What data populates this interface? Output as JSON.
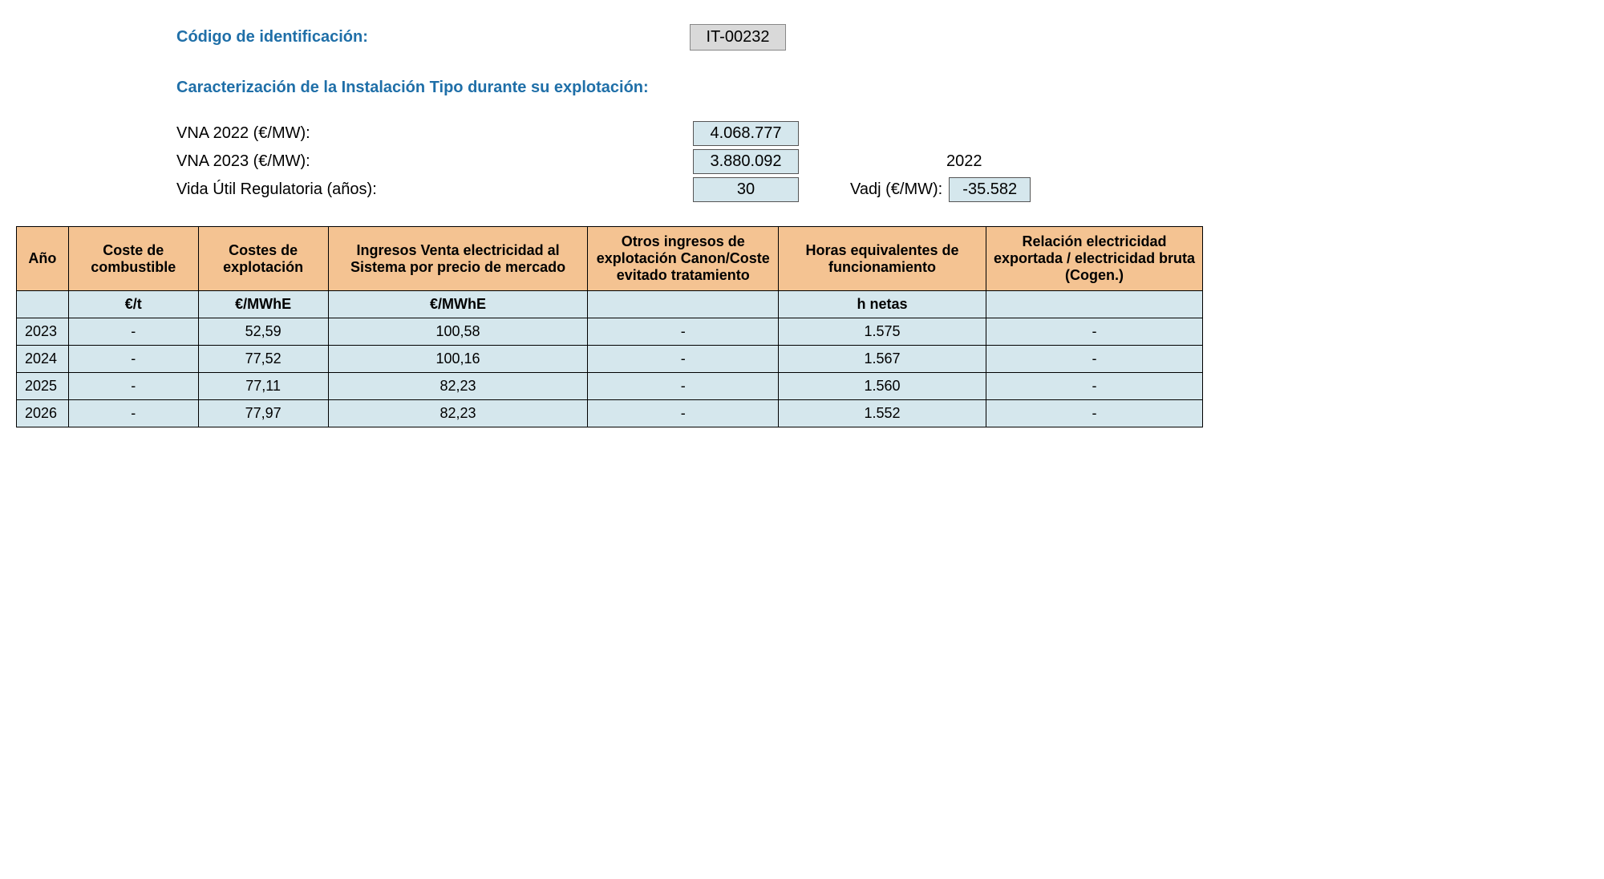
{
  "header": {
    "id_label": "Código de identificación:",
    "id_value": "IT-00232",
    "section_title": "Caracterización de la Instalación Tipo durante su explotación:"
  },
  "params": {
    "vna2022_label": "VNA 2022 (€/MW):",
    "vna2022_value": "4.068.777",
    "vna2023_label": "VNA 2023 (€/MW):",
    "vna2023_value": "3.880.092",
    "year_ref": "2022",
    "vida_label": "Vida Útil Regulatoria (años):",
    "vida_value": "30",
    "vadj_label": "Vadj (€/MW):",
    "vadj_value": "-35.582"
  },
  "table": {
    "columns": [
      "Año",
      "Coste de combustible",
      "Costes de explotación",
      "Ingresos Venta electricidad al Sistema por precio de mercado",
      "Otros ingresos de explotación Canon/Coste evitado tratamiento",
      "Horas equivalentes de funcionamiento",
      "Relación electricidad exportada / electricidad bruta\n(Cogen.)"
    ],
    "units": [
      "",
      "€/t",
      "€/MWhE",
      "€/MWhE",
      "",
      "h netas",
      ""
    ],
    "rows": [
      [
        "2023",
        "-",
        "52,59",
        "100,58",
        "-",
        "1.575",
        "-"
      ],
      [
        "2024",
        "-",
        "77,52",
        "100,16",
        "-",
        "1.567",
        "-"
      ],
      [
        "2025",
        "-",
        "77,11",
        "82,23",
        "-",
        "1.560",
        "-"
      ],
      [
        "2026",
        "-",
        "77,97",
        "82,23",
        "-",
        "1.552",
        "-"
      ]
    ],
    "col_widths": [
      "60px",
      "150px",
      "150px",
      "300px",
      "220px",
      "240px",
      "250px"
    ],
    "header_bg": "#f4c392",
    "cell_bg": "#d5e7ed",
    "border_color": "#000000"
  }
}
